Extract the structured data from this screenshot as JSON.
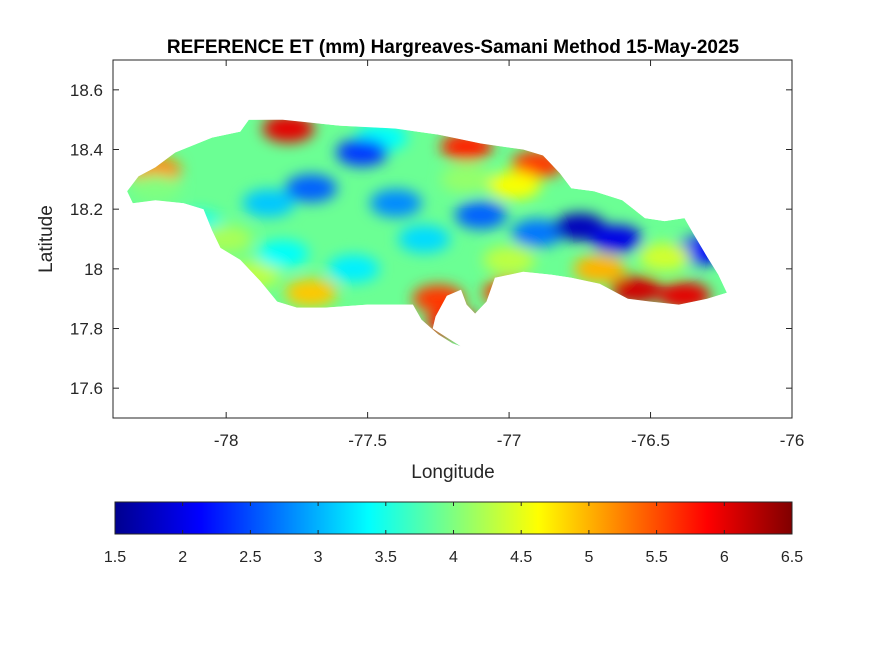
{
  "chart_data": {
    "type": "heatmap",
    "title": "REFERENCE ET (mm) Hargreaves-Samani Method  15-May-2025",
    "xlabel": "Longitude",
    "ylabel": "Latitude",
    "xlim": [
      -78.4,
      -76
    ],
    "ylim": [
      17.5,
      18.7
    ],
    "xticks": [
      "-78",
      "-77.5",
      "-77",
      "-76.5",
      "-76"
    ],
    "xtick_values": [
      -78,
      -77.5,
      -77,
      -76.5,
      -76
    ],
    "yticks": [
      "17.6",
      "17.8",
      "18",
      "18.2",
      "18.4",
      "18.6"
    ],
    "ytick_values": [
      17.6,
      17.8,
      18.0,
      18.2,
      18.4,
      18.6
    ],
    "colormap": "jet",
    "colorbar": {
      "orientation": "horizontal",
      "location": "below",
      "range": [
        1.5,
        6.5
      ],
      "ticks": [
        "1.5",
        "2",
        "2.5",
        "3",
        "3.5",
        "4",
        "4.5",
        "5",
        "5.5",
        "6",
        "6.5"
      ],
      "tick_values": [
        1.5,
        2,
        2.5,
        3,
        3.5,
        4,
        4.5,
        5,
        5.5,
        6,
        6.5
      ]
    },
    "grid": false,
    "outline": [
      [
        -78.35,
        18.26
      ],
      [
        -78.31,
        18.31
      ],
      [
        -78.25,
        18.34
      ],
      [
        -78.18,
        18.39
      ],
      [
        -78.05,
        18.44
      ],
      [
        -77.95,
        18.46
      ],
      [
        -77.92,
        18.5
      ],
      [
        -77.8,
        18.5
      ],
      [
        -77.6,
        18.48
      ],
      [
        -77.4,
        18.47
      ],
      [
        -77.25,
        18.45
      ],
      [
        -77.1,
        18.42
      ],
      [
        -76.95,
        18.4
      ],
      [
        -76.88,
        18.38
      ],
      [
        -76.82,
        18.32
      ],
      [
        -76.78,
        18.27
      ],
      [
        -76.7,
        18.26
      ],
      [
        -76.6,
        18.23
      ],
      [
        -76.52,
        18.17
      ],
      [
        -76.45,
        18.16
      ],
      [
        -76.38,
        18.17
      ],
      [
        -76.35,
        18.12
      ],
      [
        -76.3,
        18.04
      ],
      [
        -76.26,
        17.98
      ],
      [
        -76.23,
        17.92
      ],
      [
        -76.3,
        17.9
      ],
      [
        -76.4,
        17.88
      ],
      [
        -76.5,
        17.89
      ],
      [
        -76.58,
        17.9
      ],
      [
        -76.68,
        17.95
      ],
      [
        -76.78,
        17.97
      ],
      [
        -76.85,
        17.98
      ],
      [
        -76.95,
        17.99
      ],
      [
        -77.05,
        17.97
      ],
      [
        -77.08,
        17.89
      ],
      [
        -77.12,
        17.85
      ],
      [
        -77.15,
        17.88
      ],
      [
        -77.17,
        17.93
      ],
      [
        -77.22,
        17.91
      ],
      [
        -77.26,
        17.84
      ],
      [
        -77.27,
        17.8
      ],
      [
        -77.22,
        17.77
      ],
      [
        -77.17,
        17.74
      ],
      [
        -77.2,
        17.75
      ],
      [
        -77.25,
        17.78
      ],
      [
        -77.31,
        17.83
      ],
      [
        -77.34,
        17.88
      ],
      [
        -77.5,
        17.88
      ],
      [
        -77.65,
        17.87
      ],
      [
        -77.75,
        17.87
      ],
      [
        -77.82,
        17.89
      ],
      [
        -77.88,
        17.96
      ],
      [
        -77.95,
        18.03
      ],
      [
        -78.02,
        18.07
      ],
      [
        -78.05,
        18.13
      ],
      [
        -78.08,
        18.2
      ],
      [
        -78.15,
        18.22
      ],
      [
        -78.25,
        18.23
      ],
      [
        -78.33,
        18.22
      ]
    ],
    "hotspots": [
      {
        "lon": -77.78,
        "lat": 18.47,
        "value": 6.0
      },
      {
        "lon": -77.15,
        "lat": 18.41,
        "value": 5.7
      },
      {
        "lon": -76.9,
        "lat": 18.35,
        "value": 5.6
      },
      {
        "lon": -78.25,
        "lat": 18.33,
        "value": 5.2
      },
      {
        "lon": -77.45,
        "lat": 18.44,
        "value": 3.4
      },
      {
        "lon": -77.52,
        "lat": 18.39,
        "value": 2.4
      },
      {
        "lon": -77.7,
        "lat": 18.27,
        "value": 2.6
      },
      {
        "lon": -77.85,
        "lat": 18.22,
        "value": 3.1
      },
      {
        "lon": -78.1,
        "lat": 18.15,
        "value": 3.5
      },
      {
        "lon": -78.25,
        "lat": 18.27,
        "value": 4.0
      },
      {
        "lon": -77.4,
        "lat": 18.22,
        "value": 2.8
      },
      {
        "lon": -77.3,
        "lat": 18.1,
        "value": 3.2
      },
      {
        "lon": -77.1,
        "lat": 18.18,
        "value": 2.6
      },
      {
        "lon": -76.9,
        "lat": 18.12,
        "value": 2.7
      },
      {
        "lon": -76.75,
        "lat": 18.14,
        "value": 1.8
      },
      {
        "lon": -76.62,
        "lat": 18.1,
        "value": 2.0
      },
      {
        "lon": -76.33,
        "lat": 18.06,
        "value": 2.1
      },
      {
        "lon": -76.45,
        "lat": 18.04,
        "value": 4.4
      },
      {
        "lon": -76.55,
        "lat": 17.93,
        "value": 6.1
      },
      {
        "lon": -76.38,
        "lat": 17.91,
        "value": 6.0
      },
      {
        "lon": -76.68,
        "lat": 18.0,
        "value": 5.0
      },
      {
        "lon": -77.2,
        "lat": 17.82,
        "value": 5.8
      },
      {
        "lon": -77.25,
        "lat": 17.9,
        "value": 5.6
      },
      {
        "lon": -77.0,
        "lat": 17.92,
        "value": 5.6
      },
      {
        "lon": -77.0,
        "lat": 18.03,
        "value": 4.3
      },
      {
        "lon": -77.7,
        "lat": 17.92,
        "value": 4.9
      },
      {
        "lon": -77.9,
        "lat": 17.98,
        "value": 4.3
      },
      {
        "lon": -78.0,
        "lat": 18.1,
        "value": 4.2
      },
      {
        "lon": -77.55,
        "lat": 18.0,
        "value": 3.3
      },
      {
        "lon": -77.8,
        "lat": 18.05,
        "value": 3.4
      },
      {
        "lon": -77.15,
        "lat": 18.3,
        "value": 4.1
      },
      {
        "lon": -76.98,
        "lat": 18.28,
        "value": 4.6
      }
    ]
  }
}
